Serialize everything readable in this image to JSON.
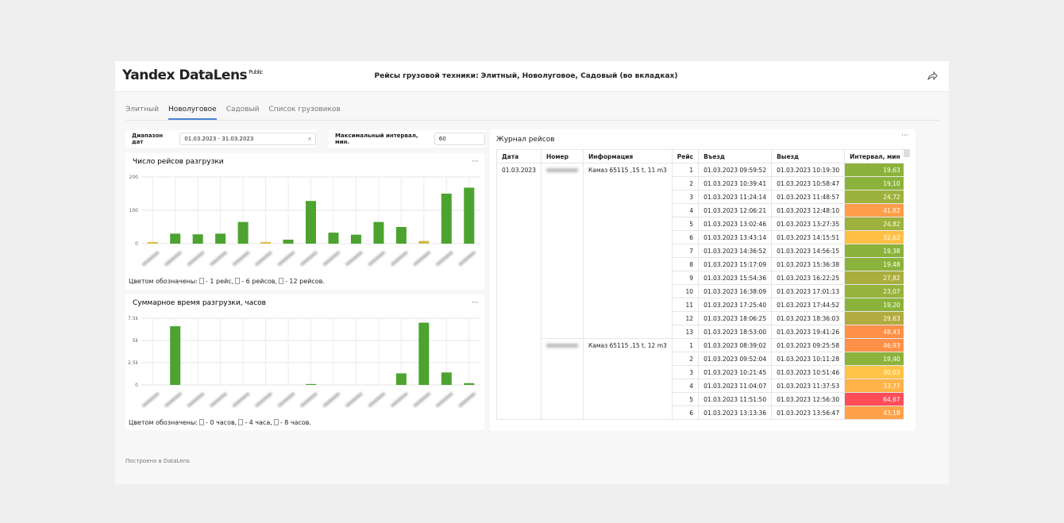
{
  "header": {
    "logo": "Yandex DataLens",
    "badge": "Public",
    "title": "Рейсы грузовой техники: Элитный, Новолуговое, Садовый (во вкладках)"
  },
  "tabs": {
    "items": [
      "Элитный",
      "Новолуговое",
      "Садовый",
      "Список грузовиков"
    ],
    "active": 1
  },
  "filters": [
    {
      "label": "Диапазон дат",
      "value": "01.03.2023 - 31.03.2023"
    },
    {
      "label": "Максимальный интервал, мин.",
      "value": "60"
    }
  ],
  "chart_data": [
    {
      "type": "bar",
      "title": "Число рейсов разгрузки",
      "categories": [
        null,
        null,
        null,
        null,
        null,
        null,
        null,
        null,
        null,
        null,
        null,
        null,
        null,
        null,
        null
      ],
      "values": [
        5,
        30,
        28,
        30,
        65,
        5,
        12,
        128,
        33,
        27,
        65,
        50,
        8,
        150,
        168
      ],
      "colors": [
        "#e3bf45",
        "#4ca32f",
        "#4ca32f",
        "#4ca32f",
        "#4ca32f",
        "#e3bf45",
        "#4ca32f",
        "#4ca32f",
        "#4ca32f",
        "#4ca32f",
        "#4ca32f",
        "#4ca32f",
        "#c9bd45",
        "#4ca32f",
        "#4ca32f"
      ],
      "ylim": [
        0,
        200
      ],
      "yticks": [
        0,
        100,
        200
      ],
      "grid": true,
      "legend": {
        "prefix": "Цветом обозначены:",
        "items": [
          "- 1 рейс,",
          "- 6 рейсов,",
          "- 12 рейсов."
        ]
      }
    },
    {
      "type": "bar",
      "title": "Суммарное время разгрузки, часов",
      "categories": [
        null,
        null,
        null,
        null,
        null,
        null,
        null,
        null,
        null,
        null,
        null,
        null,
        null,
        null,
        null
      ],
      "values": [
        0,
        6600,
        0,
        0,
        0,
        0,
        0,
        100,
        0,
        0,
        0,
        1300,
        7000,
        1400,
        200
      ],
      "colors": [
        "#4ca32f",
        "#4ca32f",
        "#4ca32f",
        "#4ca32f",
        "#4ca32f",
        "#4ca32f",
        "#4ca32f",
        "#4ca32f",
        "#4ca32f",
        "#4ca32f",
        "#4ca32f",
        "#4ca32f",
        "#4ca32f",
        "#4ca32f",
        "#4ca32f"
      ],
      "ylim": [
        0,
        7500
      ],
      "yticks": [
        0,
        {
          "value": 2500,
          "label": "2.5k"
        },
        {
          "value": 5000,
          "label": "5k"
        },
        {
          "value": 7500,
          "label": "7.5k"
        }
      ],
      "grid": true,
      "legend": {
        "prefix": "Цветом обозначены:",
        "items": [
          "- 0 часов,",
          "- 4 часа,",
          "- 8 часов."
        ]
      }
    }
  ],
  "table": {
    "title": "Журнал рейсов",
    "columns": [
      "Дата",
      "Номер",
      "Информация",
      "Рейс",
      "Въезд",
      "Выезд",
      "Интервал, мин"
    ],
    "date": "01.03.2023",
    "groups": [
      {
        "number": null,
        "info": "Камаз 65115 ,15 t, 11 m3",
        "rows": [
          [
            1,
            "01.03.2023 09:59:52",
            "01.03.2023 10:19:30",
            "19,63"
          ],
          [
            2,
            "01.03.2023 10:39:41",
            "01.03.2023 10:58:47",
            "19,10"
          ],
          [
            3,
            "01.03.2023 11:24:14",
            "01.03.2023 11:48:57",
            "24,72"
          ],
          [
            4,
            "01.03.2023 12:06:21",
            "01.03.2023 12:48:10",
            "41,82"
          ],
          [
            5,
            "01.03.2023 13:02:46",
            "01.03.2023 13:27:35",
            "24,82"
          ],
          [
            6,
            "01.03.2023 13:43:14",
            "01.03.2023 14:15:51",
            "32,62"
          ],
          [
            7,
            "01.03.2023 14:36:52",
            "01.03.2023 14:56:15",
            "19,38"
          ],
          [
            8,
            "01.03.2023 15:17:09",
            "01.03.2023 15:36:38",
            "19,48"
          ],
          [
            9,
            "01.03.2023 15:54:36",
            "01.03.2023 16:22:25",
            "27,82"
          ],
          [
            10,
            "01.03.2023 16:38:09",
            "01.03.2023 17:01:13",
            "23,07"
          ],
          [
            11,
            "01.03.2023 17:25:40",
            "01.03.2023 17:44:52",
            "19,20"
          ],
          [
            12,
            "01.03.2023 18:06:25",
            "01.03.2023 18:36:03",
            "29,63"
          ],
          [
            13,
            "01.03.2023 18:53:00",
            "01.03.2023 19:41:26",
            "48,43"
          ]
        ],
        "colors": [
          "#8bb33b",
          "#8bb33b",
          "#9db23c",
          "#ff9e4a",
          "#9db23c",
          "#ffbf47",
          "#8bb33b",
          "#8bb33b",
          "#aaae3e",
          "#96b33b",
          "#8bb33b",
          "#b2ab3f",
          "#ff9048"
        ]
      },
      {
        "number": null,
        "info": "Камаз 65115 ,15 t, 12 m3",
        "rows": [
          [
            1,
            "01.03.2023 08:39:02",
            "01.03.2023 09:25:58",
            "46,93"
          ],
          [
            2,
            "01.03.2023 09:52:04",
            "01.03.2023 10:11:28",
            "19,40"
          ],
          [
            3,
            "01.03.2023 10:21:45",
            "01.03.2023 10:51:46",
            "30,02"
          ],
          [
            4,
            "01.03.2023 11:04:07",
            "01.03.2023 11:37:53",
            "33,77"
          ],
          [
            5,
            "01.03.2023 11:51:50",
            "01.03.2023 12:56:30",
            "64,67"
          ],
          [
            6,
            "01.03.2023 13:13:36",
            "01.03.2023 13:56:47",
            "43,18"
          ]
        ],
        "colors": [
          "#ff9048",
          "#8bb33b",
          "#ffc447",
          "#ffb247",
          "#ff4d5a",
          "#ffa14a"
        ]
      }
    ]
  },
  "footer": "Построено в DataLens"
}
